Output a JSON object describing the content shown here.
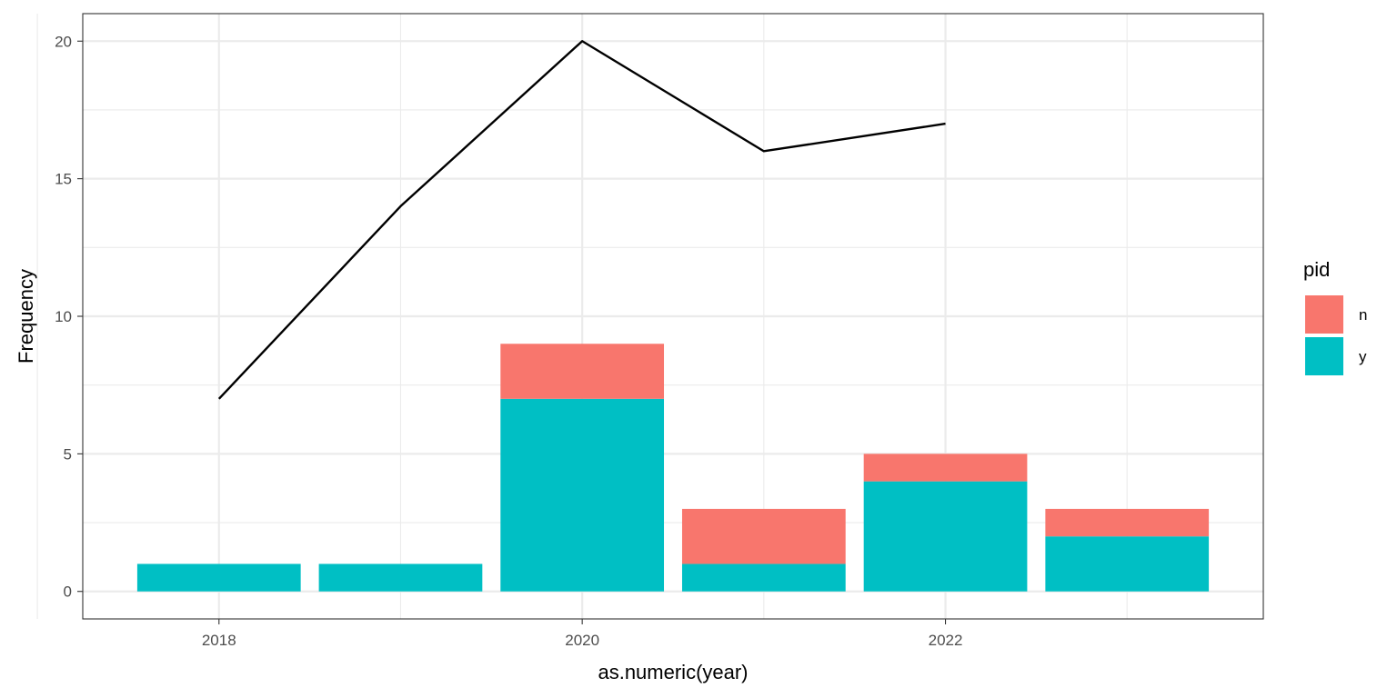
{
  "chart_data": {
    "type": "bar",
    "title": "",
    "xlabel": "as.numeric(year)",
    "ylabel": "Frequency",
    "x": [
      2018,
      2019,
      2020,
      2021,
      2022,
      2023
    ],
    "x_ticks": [
      2018,
      2020,
      2022
    ],
    "y_ticks": [
      0,
      5,
      10,
      15,
      20
    ],
    "xlim": [
      2017.25,
      2023.75
    ],
    "ylim": [
      -1,
      21
    ],
    "grid": true,
    "stacked": true,
    "legend": {
      "title": "pid",
      "position": "right"
    },
    "series": [
      {
        "name": "y",
        "color": "#00BFC4",
        "values": [
          1,
          1,
          7,
          1,
          4,
          2
        ]
      },
      {
        "name": "n",
        "color": "#F8766D",
        "values": [
          0,
          0,
          2,
          2,
          1,
          1
        ]
      }
    ],
    "line": {
      "color": "#000000",
      "x": [
        2018,
        2019,
        2020,
        2021,
        2022
      ],
      "values": [
        7,
        14,
        20,
        16,
        17
      ]
    }
  }
}
